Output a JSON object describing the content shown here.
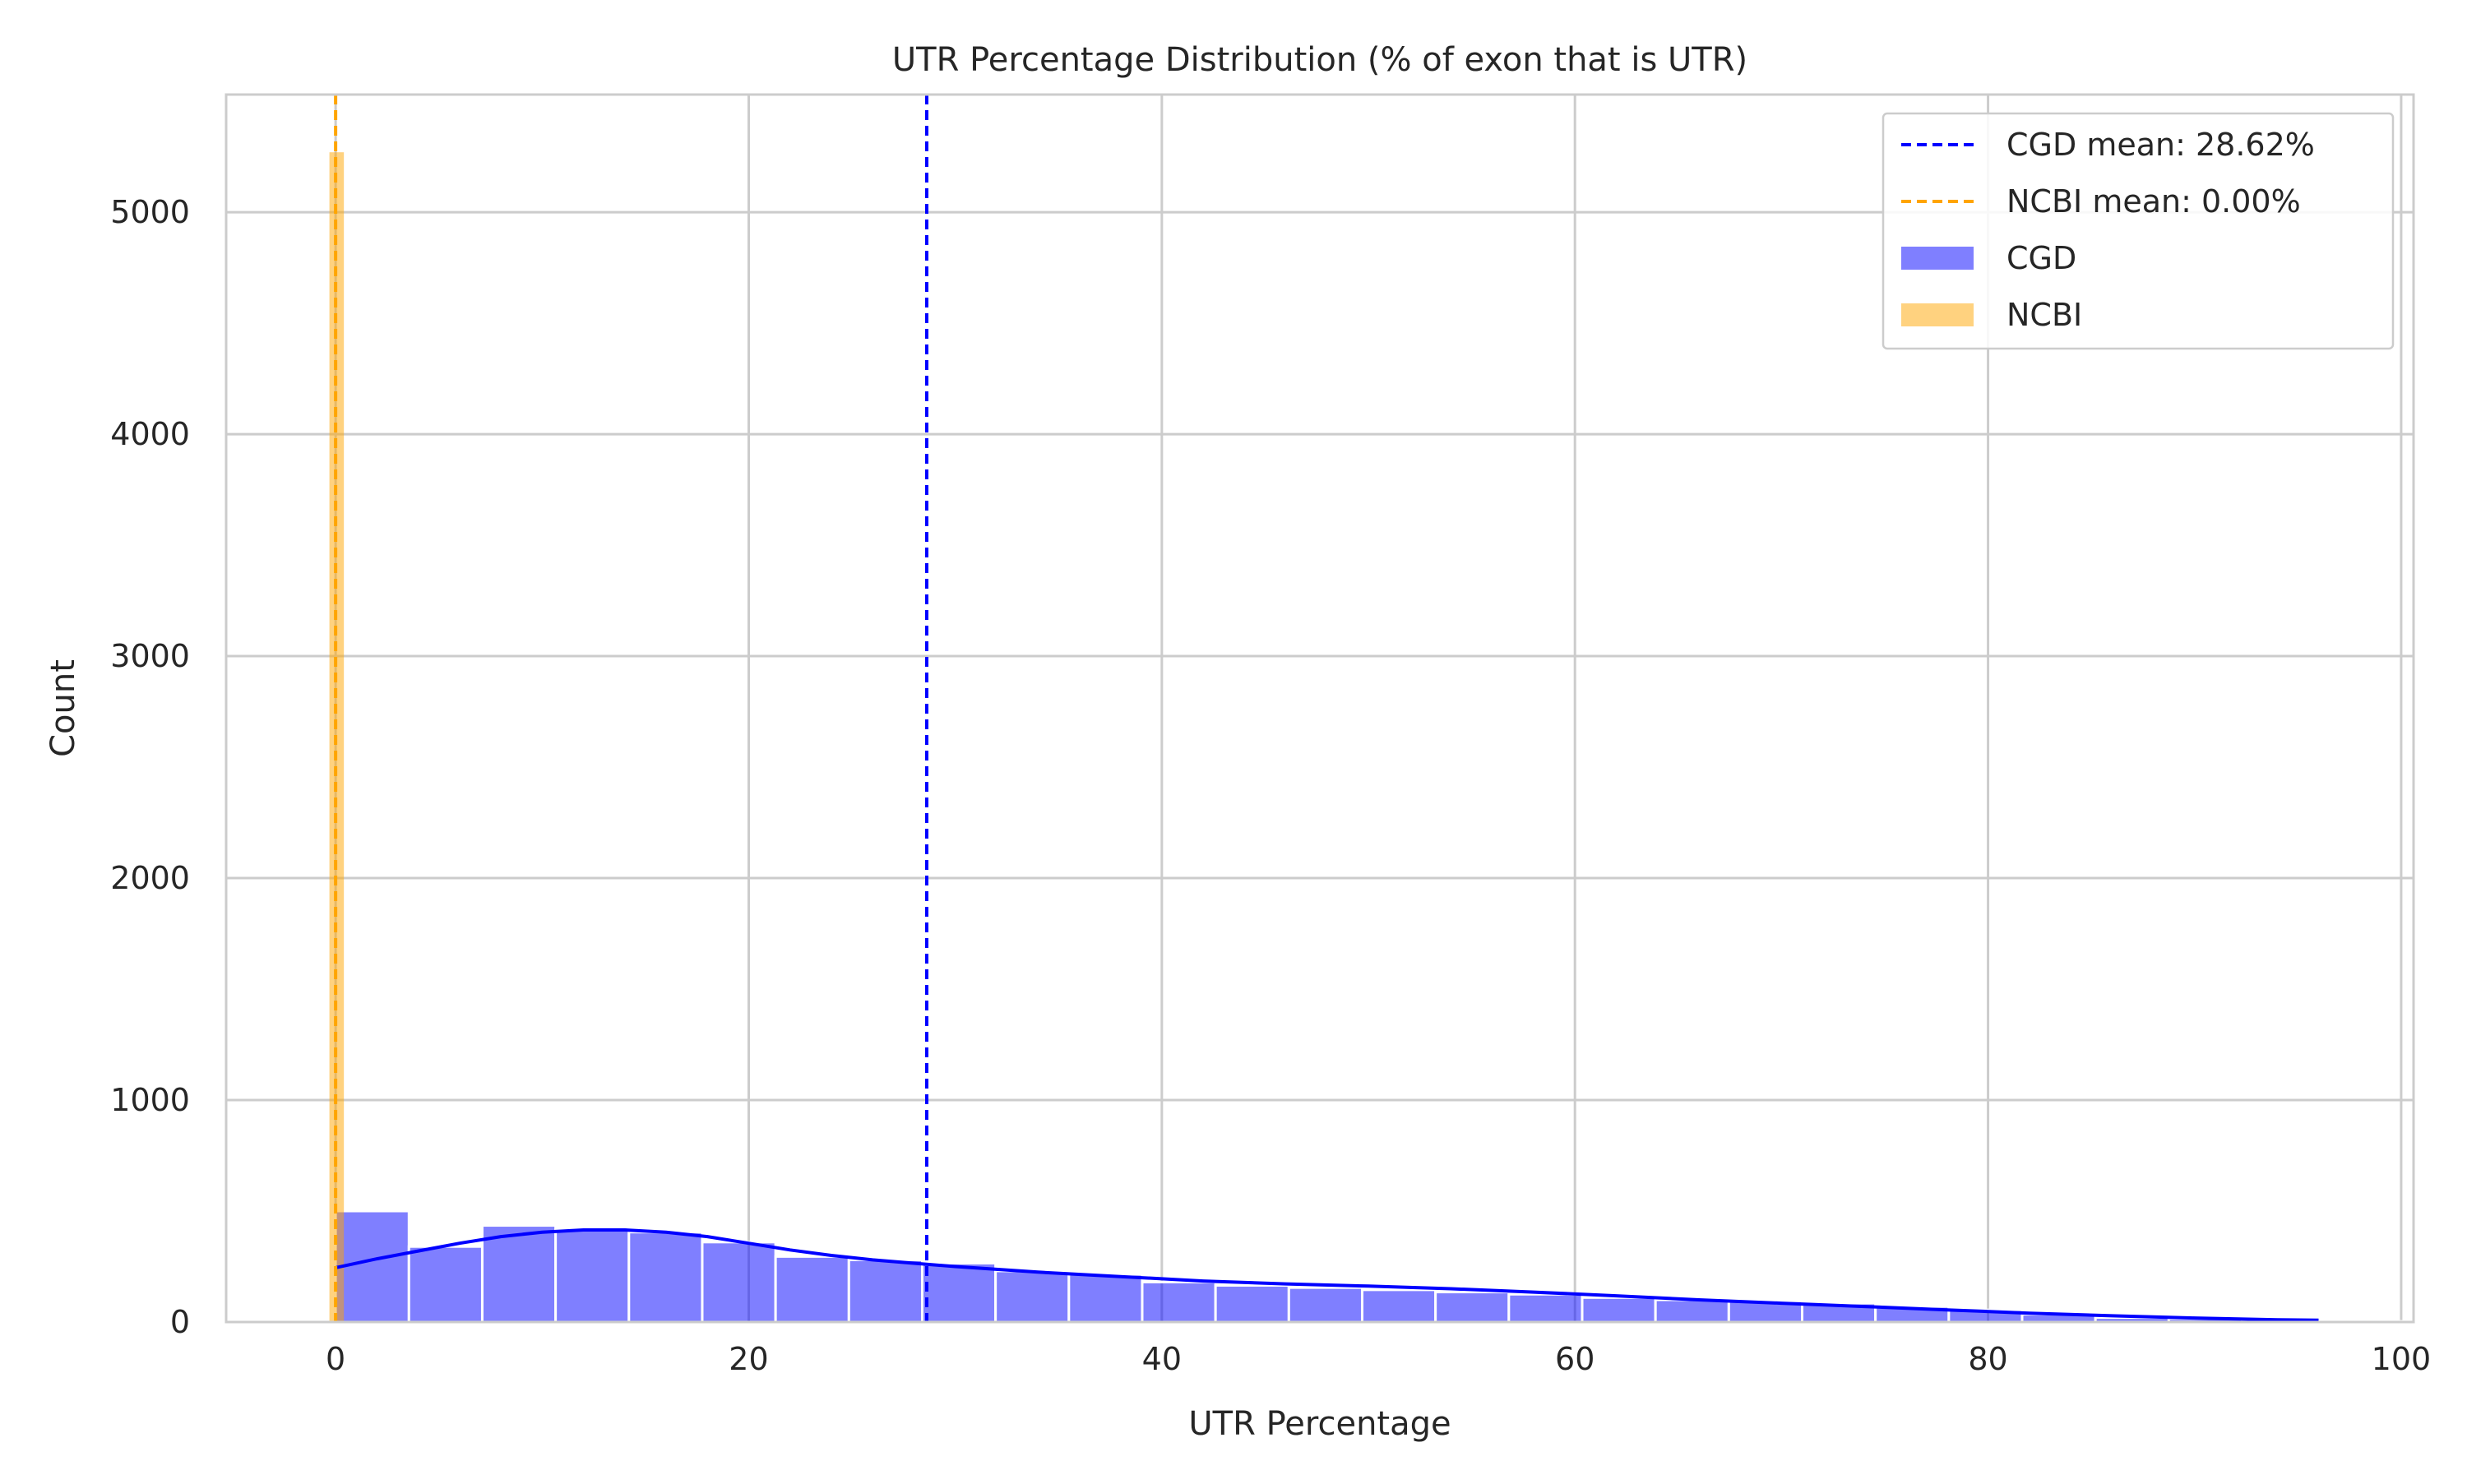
{
  "chart_data": {
    "type": "bar",
    "title": "UTR Percentage Distribution (% of exon that is UTR)",
    "xlabel": "UTR Percentage",
    "ylabel": "Count",
    "xlim": [
      -5.3,
      100.6
    ],
    "ylim": [
      0,
      5530
    ],
    "grid": true,
    "legend_position": "top-right",
    "x_ticks": [
      0,
      20,
      40,
      60,
      80,
      100
    ],
    "y_ticks": [
      0,
      1000,
      2000,
      3000,
      4000,
      5000
    ],
    "colors": {
      "cgd": "#0000ff",
      "ncbi": "#ffa500",
      "grid": "#cccccc",
      "frame": "#cccccc"
    },
    "series": [
      {
        "name": "CGD",
        "kind": "histogram",
        "bin_width": 3.55,
        "bin_start": 0.0,
        "values": [
          500,
          340,
          435,
          415,
          405,
          360,
          295,
          280,
          265,
          230,
          215,
          180,
          165,
          155,
          145,
          135,
          125,
          110,
          100,
          95,
          85,
          70,
          55,
          35,
          20,
          15,
          10,
          5,
          3,
          2
        ]
      },
      {
        "name": "NCBI",
        "kind": "histogram",
        "bin_edges": [
          -0.3,
          0.4
        ],
        "values": [
          5270
        ]
      }
    ],
    "kde": {
      "series": "CGD",
      "x": [
        0,
        2,
        4,
        6,
        8,
        10,
        12,
        14,
        16,
        18,
        20,
        22,
        24,
        26,
        28,
        30,
        34,
        38,
        42,
        46,
        50,
        54,
        58,
        62,
        66,
        70,
        74,
        78,
        82,
        86,
        90,
        94,
        96
      ],
      "y": [
        245,
        285,
        320,
        355,
        385,
        405,
        415,
        415,
        405,
        385,
        355,
        325,
        300,
        280,
        265,
        250,
        225,
        205,
        185,
        172,
        162,
        150,
        135,
        118,
        100,
        85,
        70,
        55,
        40,
        28,
        18,
        10,
        8
      ]
    },
    "mean_lines": [
      {
        "series": "CGD",
        "value": 28.62,
        "label": "CGD mean: 28.62%"
      },
      {
        "series": "NCBI",
        "value": 0.0,
        "label": "NCBI mean: 0.00%"
      }
    ]
  }
}
